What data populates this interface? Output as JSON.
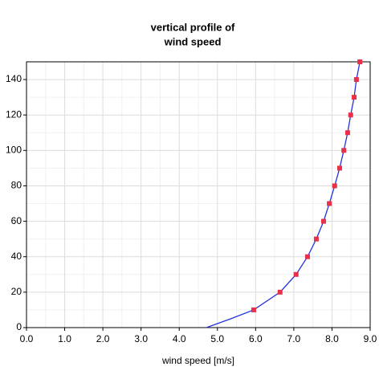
{
  "chart_data": {
    "type": "line",
    "title": [
      "vertical profile of",
      "wind speed"
    ],
    "x_label": "wind speed [m/s]",
    "xlim": [
      0,
      9
    ],
    "xticks": [
      {
        "value": 0,
        "label": "0.0"
      },
      {
        "value": 1,
        "label": "1.0"
      },
      {
        "value": 2,
        "label": "2.0"
      },
      {
        "value": 3,
        "label": "3.0"
      },
      {
        "value": 4,
        "label": "4.0"
      },
      {
        "value": 5,
        "label": "5.0"
      },
      {
        "value": 6,
        "label": "6.0"
      },
      {
        "value": 7,
        "label": "7.0"
      },
      {
        "value": 8,
        "label": "8.0"
      },
      {
        "value": 9,
        "label": "9.0"
      }
    ],
    "ylim": [
      0,
      150
    ],
    "yticks": [
      0,
      20,
      40,
      60,
      80,
      100,
      120,
      140
    ],
    "grid": true,
    "series": [
      {
        "color": "#2233dd",
        "line": true,
        "markers": false,
        "x": [
          4.71,
          5.35,
          5.95,
          6.64,
          7.06,
          7.36,
          7.59,
          7.78,
          7.93,
          8.07,
          8.2,
          8.31,
          8.41,
          8.49,
          8.58,
          8.64,
          8.73
        ],
        "values": [
          0,
          5,
          10,
          20,
          30,
          40,
          50,
          60,
          70,
          80,
          90,
          100,
          110,
          120,
          130,
          140,
          150
        ]
      },
      {
        "color": "#e8304a",
        "line": false,
        "markers": true,
        "x": [
          5.95,
          6.64,
          7.06,
          7.36,
          7.59,
          7.78,
          7.93,
          8.07,
          8.2,
          8.31,
          8.41,
          8.49,
          8.58,
          8.64,
          8.73
        ],
        "values": [
          10,
          20,
          30,
          40,
          50,
          60,
          70,
          80,
          90,
          100,
          110,
          120,
          130,
          140,
          150
        ]
      }
    ]
  }
}
